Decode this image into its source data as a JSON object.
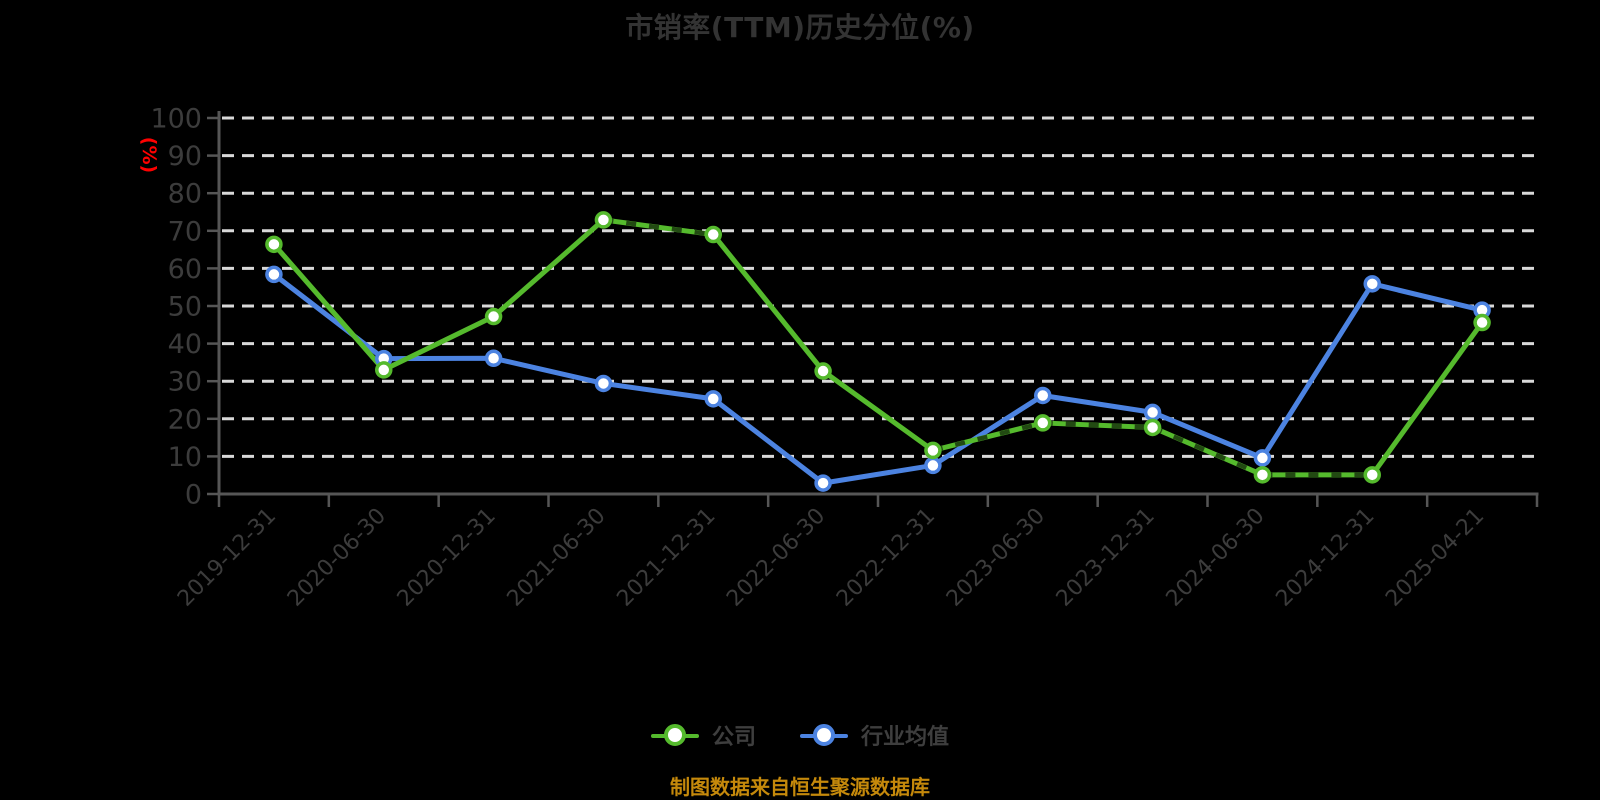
{
  "title": {
    "text": "市销率(TTM)历史分位(%)",
    "color": "#333333"
  },
  "y_axis_name": {
    "text": "(%)",
    "color": "#ff0000"
  },
  "legend": {
    "position": "bottom",
    "items": [
      {
        "label": "公司",
        "color": "#55ba2d"
      },
      {
        "label": "行业均值",
        "color": "#4c83e1"
      }
    ]
  },
  "footer": {
    "text": "制图数据来自恒生聚源数据库",
    "color": "#c5890b"
  },
  "chart_data": {
    "type": "line",
    "title": "市销率(TTM)历史分位(%)",
    "ylabel": "(%)",
    "ylim": [
      0,
      100
    ],
    "y_ticks": [
      0,
      10,
      20,
      30,
      40,
      50,
      60,
      70,
      80,
      90,
      100
    ],
    "grid": "horizontal dashed",
    "legend_position": "bottom",
    "x_label_rotation": 45,
    "categories": [
      "2019-12-31",
      "2020-06-30",
      "2020-12-31",
      "2021-06-30",
      "2021-12-31",
      "2022-06-30",
      "2022-12-31",
      "2023-06-30",
      "2023-12-31",
      "2024-06-30",
      "2024-12-31",
      "2025-04-21"
    ],
    "series": [
      {
        "key": "company",
        "name": "公司",
        "color": "#55ba2d",
        "values": [
          66.4,
          33.0,
          47.2,
          72.9,
          69.0,
          32.7,
          11.6,
          18.9,
          17.7,
          5.1,
          5.1,
          45.6
        ]
      },
      {
        "key": "industry-average",
        "name": "行业均值",
        "color": "#4c83e1",
        "values": [
          58.4,
          36.0,
          36.1,
          29.4,
          25.3,
          2.9,
          7.6,
          26.2,
          21.7,
          9.6,
          55.9,
          48.9
        ]
      }
    ],
    "style": {
      "background": "#000000",
      "grid_color": "#d9d9d9",
      "axis_color": "#565656",
      "tick_label_color": "#3c3c3c",
      "marker_fill": "#ffffff",
      "company_dashed_overlay_color": "rgba(0,0,0,0.6)",
      "company_dashed_overlay_segments": [
        [
          3,
          4
        ],
        [
          6,
          7
        ],
        [
          7,
          8
        ],
        [
          8,
          9
        ],
        [
          9,
          10
        ]
      ]
    }
  }
}
